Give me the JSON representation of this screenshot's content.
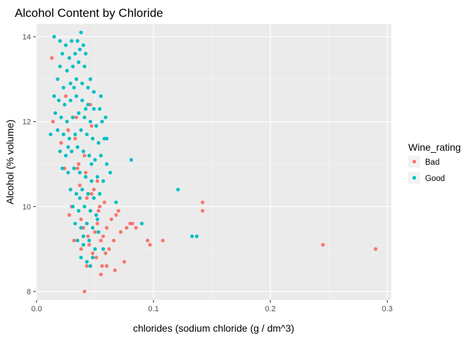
{
  "chart_data": {
    "type": "scatter",
    "title": "Alcohol Content by Chloride",
    "xlabel": "chloride",
    "ylabel": "Alcohol (% volume)",
    "xlabel_full": "chlorides (sodium chloride (g / dm^3)",
    "xlim": [
      0.0,
      0.3
    ],
    "ylim": [
      8,
      14
    ],
    "x_ticks": [
      "0.0",
      "0.1",
      "0.2",
      "0.3"
    ],
    "y_ticks": [
      "8",
      "10",
      "12",
      "14"
    ],
    "grid": true,
    "legend": {
      "title": "Wine_rating",
      "position": "right",
      "entries": [
        {
          "label": "Bad",
          "color": "#F8766D"
        },
        {
          "label": "Good",
          "color": "#00BFC4"
        }
      ]
    },
    "panel_background": "#EBEBEB",
    "series": [
      {
        "name": "Bad",
        "color": "#F8766D",
        "points": [
          [
            0.013,
            13.5
          ],
          [
            0.014,
            12.0
          ],
          [
            0.021,
            11.5
          ],
          [
            0.025,
            12.6
          ],
          [
            0.03,
            11.3
          ],
          [
            0.034,
            12.1
          ],
          [
            0.036,
            11.0
          ],
          [
            0.037,
            10.5
          ],
          [
            0.038,
            9.7
          ],
          [
            0.04,
            9.5
          ],
          [
            0.042,
            10.8
          ],
          [
            0.043,
            10.2
          ],
          [
            0.045,
            9.1
          ],
          [
            0.046,
            9.9
          ],
          [
            0.047,
            10.3
          ],
          [
            0.048,
            8.9
          ],
          [
            0.05,
            9.4
          ],
          [
            0.051,
            8.8
          ],
          [
            0.052,
            9.6
          ],
          [
            0.053,
            9.9
          ],
          [
            0.054,
            10.0
          ],
          [
            0.055,
            9.2
          ],
          [
            0.056,
            8.6
          ],
          [
            0.057,
            9.3
          ],
          [
            0.058,
            10.1
          ],
          [
            0.059,
            8.9
          ],
          [
            0.06,
            9.5
          ],
          [
            0.062,
            9.0
          ],
          [
            0.064,
            9.7
          ],
          [
            0.066,
            9.2
          ],
          [
            0.067,
            8.5
          ],
          [
            0.068,
            9.8
          ],
          [
            0.07,
            9.9
          ],
          [
            0.072,
            9.4
          ],
          [
            0.075,
            8.7
          ],
          [
            0.077,
            9.5
          ],
          [
            0.08,
            9.6
          ],
          [
            0.082,
            9.6
          ],
          [
            0.085,
            9.5
          ],
          [
            0.095,
            9.2
          ],
          [
            0.097,
            9.1
          ],
          [
            0.108,
            9.2
          ],
          [
            0.142,
            10.1
          ],
          [
            0.142,
            9.9
          ],
          [
            0.245,
            9.1
          ],
          [
            0.29,
            9.0
          ],
          [
            0.041,
            8.0
          ],
          [
            0.043,
            8.6
          ],
          [
            0.055,
            8.4
          ],
          [
            0.06,
            8.6
          ],
          [
            0.03,
            10.0
          ],
          [
            0.028,
            9.8
          ],
          [
            0.032,
            9.2
          ],
          [
            0.038,
            9.0
          ],
          [
            0.044,
            9.3
          ],
          [
            0.049,
            10.4
          ],
          [
            0.035,
            10.9
          ],
          [
            0.041,
            11.2
          ],
          [
            0.033,
            11.6
          ],
          [
            0.027,
            11.8
          ],
          [
            0.047,
            11.9
          ],
          [
            0.052,
            10.6
          ],
          [
            0.024,
            10.9
          ],
          [
            0.046,
            12.4
          ]
        ]
      },
      {
        "name": "Good",
        "color": "#00BFC4",
        "points": [
          [
            0.015,
            14.0
          ],
          [
            0.02,
            13.9
          ],
          [
            0.025,
            13.8
          ],
          [
            0.03,
            13.9
          ],
          [
            0.035,
            13.9
          ],
          [
            0.038,
            14.1
          ],
          [
            0.04,
            13.8
          ],
          [
            0.028,
            13.5
          ],
          [
            0.033,
            13.6
          ],
          [
            0.037,
            13.7
          ],
          [
            0.042,
            13.6
          ],
          [
            0.02,
            13.3
          ],
          [
            0.026,
            13.2
          ],
          [
            0.031,
            13.3
          ],
          [
            0.036,
            13.4
          ],
          [
            0.041,
            13.3
          ],
          [
            0.046,
            13.0
          ],
          [
            0.018,
            13.0
          ],
          [
            0.023,
            12.8
          ],
          [
            0.029,
            12.9
          ],
          [
            0.034,
            13.0
          ],
          [
            0.039,
            12.9
          ],
          [
            0.044,
            12.8
          ],
          [
            0.049,
            12.7
          ],
          [
            0.015,
            12.6
          ],
          [
            0.019,
            12.5
          ],
          [
            0.024,
            12.4
          ],
          [
            0.029,
            12.5
          ],
          [
            0.034,
            12.6
          ],
          [
            0.039,
            12.5
          ],
          [
            0.044,
            12.4
          ],
          [
            0.049,
            12.3
          ],
          [
            0.054,
            12.3
          ],
          [
            0.059,
            12.1
          ],
          [
            0.016,
            12.2
          ],
          [
            0.021,
            12.1
          ],
          [
            0.026,
            12.0
          ],
          [
            0.031,
            12.1
          ],
          [
            0.036,
            12.2
          ],
          [
            0.041,
            12.1
          ],
          [
            0.046,
            12.0
          ],
          [
            0.051,
            11.9
          ],
          [
            0.056,
            12.0
          ],
          [
            0.012,
            11.7
          ],
          [
            0.018,
            11.8
          ],
          [
            0.023,
            11.7
          ],
          [
            0.028,
            11.6
          ],
          [
            0.033,
            11.7
          ],
          [
            0.038,
            11.8
          ],
          [
            0.043,
            11.7
          ],
          [
            0.048,
            11.6
          ],
          [
            0.053,
            11.5
          ],
          [
            0.058,
            11.6
          ],
          [
            0.02,
            11.3
          ],
          [
            0.025,
            11.2
          ],
          [
            0.03,
            11.3
          ],
          [
            0.035,
            11.4
          ],
          [
            0.04,
            11.3
          ],
          [
            0.045,
            11.2
          ],
          [
            0.05,
            11.1
          ],
          [
            0.055,
            11.2
          ],
          [
            0.06,
            11.0
          ],
          [
            0.022,
            10.9
          ],
          [
            0.027,
            10.8
          ],
          [
            0.032,
            10.9
          ],
          [
            0.037,
            10.8
          ],
          [
            0.042,
            10.7
          ],
          [
            0.047,
            10.6
          ],
          [
            0.052,
            10.7
          ],
          [
            0.057,
            10.6
          ],
          [
            0.029,
            10.4
          ],
          [
            0.034,
            10.3
          ],
          [
            0.039,
            10.4
          ],
          [
            0.044,
            10.3
          ],
          [
            0.049,
            10.2
          ],
          [
            0.054,
            10.3
          ],
          [
            0.031,
            10.0
          ],
          [
            0.036,
            9.9
          ],
          [
            0.041,
            10.0
          ],
          [
            0.046,
            9.9
          ],
          [
            0.051,
            9.8
          ],
          [
            0.033,
            9.6
          ],
          [
            0.038,
            9.5
          ],
          [
            0.043,
            9.6
          ],
          [
            0.048,
            9.5
          ],
          [
            0.053,
            9.4
          ],
          [
            0.035,
            9.2
          ],
          [
            0.04,
            9.1
          ],
          [
            0.045,
            9.2
          ],
          [
            0.05,
            9.0
          ],
          [
            0.038,
            8.8
          ],
          [
            0.043,
            8.7
          ],
          [
            0.048,
            8.8
          ],
          [
            0.081,
            11.1
          ],
          [
            0.121,
            10.4
          ],
          [
            0.133,
            9.3
          ],
          [
            0.137,
            9.3
          ],
          [
            0.09,
            9.6
          ],
          [
            0.063,
            10.8
          ],
          [
            0.068,
            10.1
          ],
          [
            0.06,
            11.6
          ],
          [
            0.055,
            12.6
          ],
          [
            0.022,
            13.6
          ],
          [
            0.032,
            12.8
          ],
          [
            0.042,
            12.3
          ],
          [
            0.027,
            11.4
          ],
          [
            0.047,
            11.0
          ],
          [
            0.037,
            10.2
          ],
          [
            0.052,
            9.7
          ],
          [
            0.04,
            9.3
          ],
          [
            0.057,
            9.0
          ],
          [
            0.046,
            8.6
          ]
        ]
      }
    ]
  }
}
